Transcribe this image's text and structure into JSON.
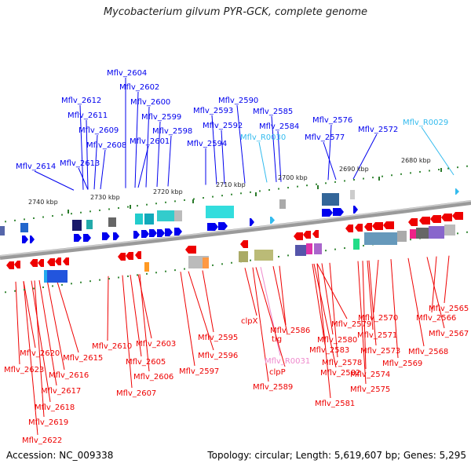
{
  "title": "Mycobacterium gilvum PYR-GCK, complete genome",
  "footer": {
    "accession": "Accession: NC_009338",
    "summary": "Topology: circular; Length: 5,619,607 bp; Genes: 5,295"
  },
  "colors": {
    "forward_gene": "#0000ee",
    "reverse_gene": "#ee0000",
    "rna_forward": "#33bbee",
    "rna_reverse": "#ee88cc",
    "backbone": "#808080"
  },
  "kbp_marks": [
    "2740 kbp",
    "2730 kbp",
    "2720 kbp",
    "2710 kbp",
    "2700 kbp",
    "2690 kbp",
    "2680 kbp"
  ],
  "top_labels": [
    "Mflv_2604",
    "Mflv_2602",
    "Mflv_2612",
    "Mflv_2600",
    "Mflv_2590",
    "Mflv_2611",
    "Mflv_2599",
    "Mflv_2593",
    "Mflv_2585",
    "Mflv_2609",
    "Mflv_2598",
    "Mflv_2592",
    "Mflv_2584",
    "Mflv_2576",
    "Mflv_2572",
    "Mflv_R0029",
    "Mflv_2608",
    "Mflv_2601",
    "Mflv_2594",
    "Mflv_R0030",
    "Mflv_2577",
    "Mflv_2614",
    "Mflv_2613"
  ],
  "bottom_labels": [
    "Mflv_2565",
    "Mflv_2566",
    "Mflv_2567",
    "Mflv_2570",
    "Mflv_2568",
    "Mflv_2579",
    "Mflv_2586",
    "Mflv_2571",
    "clpX",
    "tig",
    "Mflv_2580",
    "Mflv_2573",
    "Mflv_2610",
    "Mflv_2603",
    "Mflv_2583",
    "Mflv_2569",
    "Mflv_2595",
    "Mflv_2620",
    "Mflv_2578",
    "Mflv_2574",
    "Mflv_2615",
    "Mflv_2596",
    "Mflv_R0031",
    "Mflv_2605",
    "Mflv_2623",
    "Mflv_2616",
    "Mflv_2582",
    "Mflv_2597",
    "clpP",
    "Mflv_2575",
    "Mflv_2606",
    "Mflv_2617",
    "Mflv_2589",
    "Mflv_2607",
    "Mflv_2618",
    "Mflv_2581",
    "Mflv_2619",
    "Mflv_2622"
  ]
}
